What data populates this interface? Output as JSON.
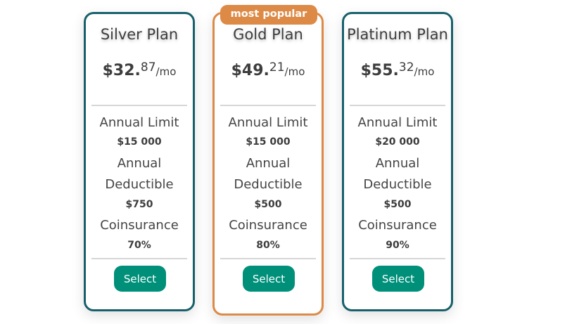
{
  "badge": "most popular",
  "labels": {
    "limit": "Annual Limit",
    "ded1": "Annual",
    "ded2": "Deductible",
    "coins": "Coinsurance",
    "select": "Select",
    "per": "/mo"
  },
  "plans": [
    {
      "name": "Silver Plan",
      "dollars": "$32.",
      "cents": "87",
      "limit": "$15 000",
      "deductible": "$750",
      "coinsurance": "70%"
    },
    {
      "name": "Gold Plan",
      "dollars": "$49.",
      "cents": "21",
      "limit": "$15 000",
      "deductible": "$500",
      "coinsurance": "80%"
    },
    {
      "name": "Platinum Plan",
      "dollars": "$55.",
      "cents": "32",
      "limit": "$20 000",
      "deductible": "$500",
      "coinsurance": "90%"
    }
  ],
  "colors": {
    "card_border": "#17606b",
    "popular_border": "#dd8a47",
    "button": "#00907a"
  }
}
